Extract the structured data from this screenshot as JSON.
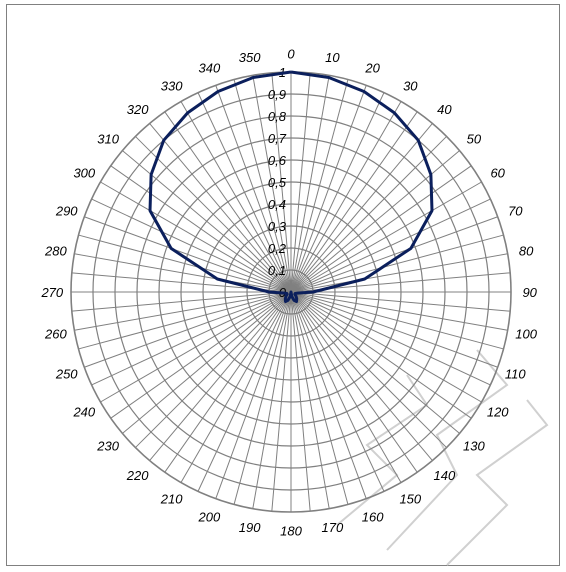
{
  "chart_data": {
    "type": "polar-line",
    "title": "",
    "angle_unit": "degrees",
    "angle_direction": "clockwise",
    "zero_direction": "top",
    "angle_ticks": [
      "0",
      "10",
      "20",
      "30",
      "40",
      "50",
      "60",
      "70",
      "80",
      "90",
      "100",
      "110",
      "120",
      "130",
      "140",
      "150",
      "160",
      "170",
      "180",
      "190",
      "200",
      "210",
      "220",
      "230",
      "240",
      "250",
      "260",
      "270",
      "280",
      "290",
      "300",
      "310",
      "320",
      "330",
      "340",
      "350"
    ],
    "radial_ticks": [
      "0",
      "0,1",
      "0,2",
      "0,3",
      "0,4",
      "0,5",
      "0,6",
      "0,7",
      "0,8",
      "0,9",
      "1"
    ],
    "rlim": [
      0,
      1
    ],
    "grid": true,
    "series": [
      {
        "color": "#0b1f5c",
        "angles": [
          0,
          10,
          20,
          30,
          40,
          50,
          60,
          70,
          80,
          90,
          100,
          110,
          120,
          130,
          140,
          150,
          160,
          170,
          180,
          190,
          200,
          210,
          220,
          230,
          240,
          250,
          260,
          270,
          280,
          290,
          300,
          310,
          320,
          330,
          340,
          350,
          360
        ],
        "values": [
          1.0,
          0.99,
          0.97,
          0.94,
          0.9,
          0.83,
          0.74,
          0.58,
          0.34,
          0.1,
          0.03,
          0.02,
          0.02,
          0.03,
          0.04,
          0.05,
          0.04,
          0.02,
          0.0,
          0.02,
          0.04,
          0.05,
          0.04,
          0.03,
          0.02,
          0.02,
          0.03,
          0.1,
          0.34,
          0.58,
          0.74,
          0.83,
          0.9,
          0.94,
          0.97,
          0.99,
          1.0
        ]
      }
    ]
  },
  "colors": {
    "grid": "#808080",
    "series": "#0b1f5c",
    "watermark": "#d0d0d0"
  },
  "watermark_text": "ENA"
}
